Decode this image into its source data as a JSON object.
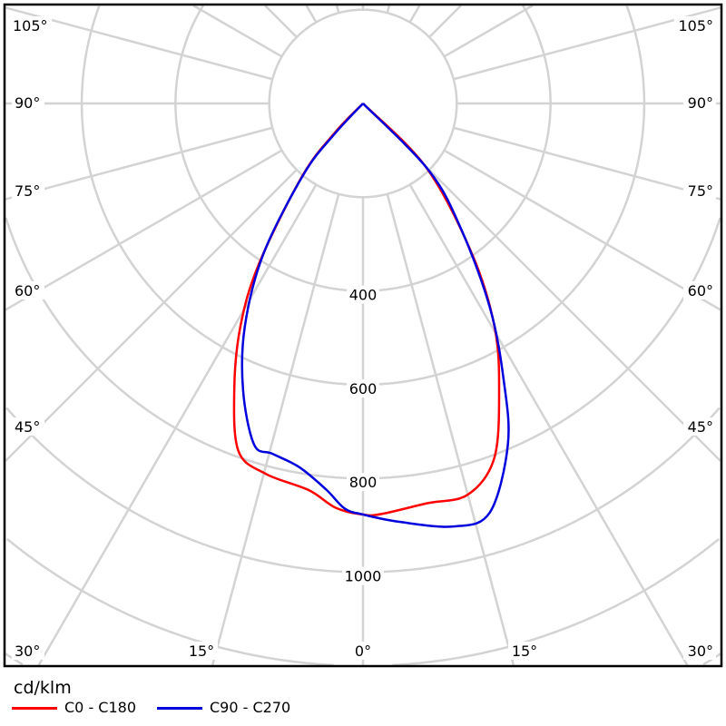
{
  "chart_data": {
    "type": "polar",
    "unit": "cd/klm",
    "radial_ticks": [
      400,
      600,
      800,
      1000
    ],
    "radial_grid_step": 200,
    "angle_grid_step": 15,
    "angle_labels": {
      "left": [
        "105°",
        "90°",
        "75°",
        "60°",
        "45°",
        "30°"
      ],
      "right": [
        "105°",
        "90°",
        "75°",
        "60°",
        "45°",
        "30°"
      ],
      "bottom": [
        "15°",
        "0°",
        "15°"
      ]
    },
    "legend_placement": "bottom-left",
    "series": [
      {
        "name": "C0 - C180",
        "color": "#ff0000",
        "points": [
          {
            "gamma": -47,
            "cd": 0
          },
          {
            "gamma": -44,
            "cd": 84
          },
          {
            "gamma": -40,
            "cd": 200
          },
          {
            "gamma": -33,
            "cd": 407
          },
          {
            "gamma": -28.8,
            "cd": 543
          },
          {
            "gamma": -24.2,
            "cd": 670
          },
          {
            "gamma": -19.7,
            "cd": 788
          },
          {
            "gamma": -14.7,
            "cd": 817
          },
          {
            "gamma": -8,
            "cd": 833
          },
          {
            "gamma": -3.8,
            "cd": 865
          },
          {
            "gamma": 0,
            "cd": 877
          },
          {
            "gamma": 2.5,
            "cd": 877
          },
          {
            "gamma": 9,
            "cd": 864
          },
          {
            "gamma": 15,
            "cd": 864
          },
          {
            "gamma": 20.3,
            "cd": 807
          },
          {
            "gamma": 25.4,
            "cd": 677
          },
          {
            "gamma": 30.5,
            "cd": 553
          },
          {
            "gamma": 35.9,
            "cd": 397
          },
          {
            "gamma": 44.6,
            "cd": 193
          },
          {
            "gamma": 47,
            "cd": 0
          }
        ]
      },
      {
        "name": "C90 - C270",
        "color": "#0000dd",
        "points": [
          {
            "gamma": -47,
            "cd": 0
          },
          {
            "gamma": -43,
            "cd": 90
          },
          {
            "gamma": -40,
            "cd": 196
          },
          {
            "gamma": -33.5,
            "cd": 385
          },
          {
            "gamma": -27.9,
            "cd": 539
          },
          {
            "gamma": -22.7,
            "cd": 663
          },
          {
            "gamma": -17.7,
            "cd": 764
          },
          {
            "gamma": -14.5,
            "cd": 772
          },
          {
            "gamma": -9.9,
            "cd": 788
          },
          {
            "gamma": -5.4,
            "cd": 828
          },
          {
            "gamma": -2.6,
            "cd": 865
          },
          {
            "gamma": 0,
            "cd": 877
          },
          {
            "gamma": 5,
            "cd": 896
          },
          {
            "gamma": 12.1,
            "cd": 923
          },
          {
            "gamma": 17.2,
            "cd": 914
          },
          {
            "gamma": 23,
            "cd": 791
          },
          {
            "gamma": 26.9,
            "cd": 664
          },
          {
            "gamma": 31.8,
            "cd": 515
          },
          {
            "gamma": 38,
            "cd": 340
          },
          {
            "gamma": 44.5,
            "cd": 200
          },
          {
            "gamma": 47,
            "cd": 0
          }
        ]
      }
    ]
  }
}
